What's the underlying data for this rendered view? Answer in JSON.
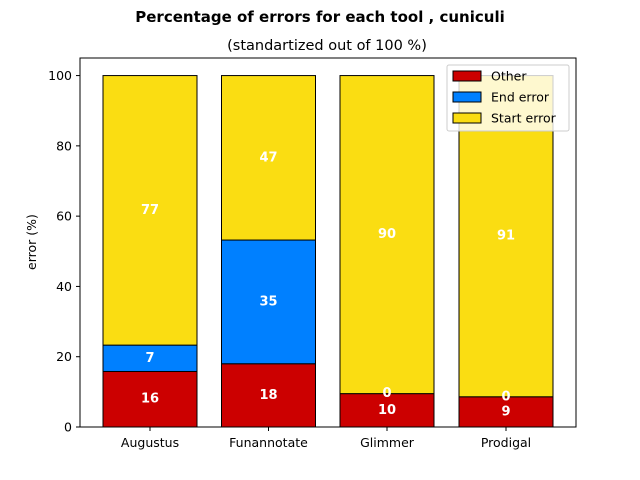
{
  "chart_data": {
    "type": "bar",
    "stacked": true,
    "title": "Percentage of errors for each tool , cuniculi",
    "subtitle": "(standartized out of 100 %)",
    "xlabel": "",
    "ylabel": "error (%)",
    "ylim": [
      0,
      105
    ],
    "yticks": [
      0,
      20,
      40,
      60,
      80,
      100
    ],
    "categories": [
      "Augustus",
      "Funannotate",
      "Glimmer",
      "Prodigal"
    ],
    "series": [
      {
        "name": "Other",
        "color": "#cc0000",
        "values": [
          16,
          18,
          10,
          9
        ],
        "display_heights": [
          15.8,
          18.0,
          9.5,
          8.6
        ]
      },
      {
        "name": "End error",
        "color": "#0080ff",
        "values": [
          7,
          35,
          0,
          0
        ],
        "display_heights": [
          7.5,
          35.2,
          0,
          0
        ]
      },
      {
        "name": "Start error",
        "color": "#fadd12",
        "values": [
          77,
          47,
          90,
          91
        ],
        "display_heights": [
          76.7,
          46.8,
          90.5,
          91.4
        ]
      }
    ],
    "grid": false,
    "legend_position": "top-right"
  }
}
